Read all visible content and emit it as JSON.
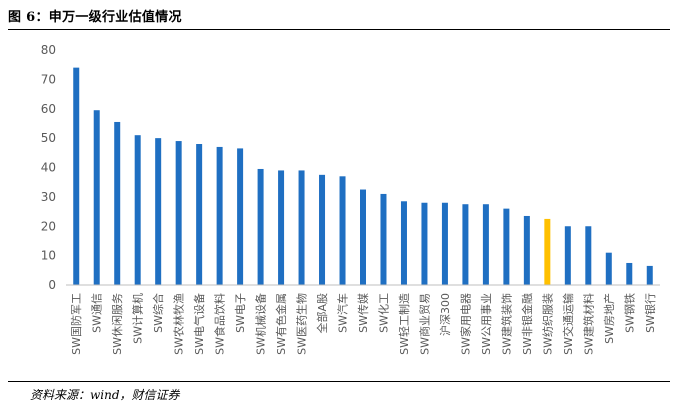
{
  "header": {
    "title": "图 6：申万一级行业估值情况"
  },
  "footer": {
    "source": "资料来源：wind，财信证券"
  },
  "colors": {
    "bar": "#1F6FC2",
    "highlight": "#FFC000",
    "axis": "#BFBFBF",
    "tick_text": "#595959"
  },
  "chart_data": {
    "type": "bar",
    "title": "图 6：申万一级行业估值情况",
    "xlabel": "",
    "ylabel": "",
    "ylim": [
      0,
      80
    ],
    "yticks": [
      0,
      10,
      20,
      30,
      40,
      50,
      60,
      70,
      80
    ],
    "grid": false,
    "legend": "none",
    "highlight_category": "SW纺织服装",
    "categories": [
      "SW国防军工",
      "SW通信",
      "SW休闲服务",
      "SW计算机",
      "SW综合",
      "SW农林牧渔",
      "SW电气设备",
      "SW食品饮料",
      "SW电子",
      "SW机械设备",
      "SW有色金属",
      "SW医药生物",
      "全部A股",
      "SW汽车",
      "SW传媒",
      "SW化工",
      "SW轻工制造",
      "SW商业贸易",
      "沪深300",
      "SW家用电器",
      "SW公用事业",
      "SW建筑装饰",
      "SW非银金融",
      "SW纺织服装",
      "SW交通运输",
      "SW建筑材料",
      "SW房地产",
      "SW钢铁",
      "SW银行"
    ],
    "values": [
      74,
      59.5,
      55.5,
      51,
      50,
      49,
      48,
      47,
      46.5,
      39.5,
      39,
      39,
      37.5,
      37,
      32.5,
      31,
      28.5,
      28,
      28,
      27.5,
      27.5,
      26,
      23.5,
      22.5,
      20,
      20,
      11,
      7.5,
      6.5
    ]
  }
}
